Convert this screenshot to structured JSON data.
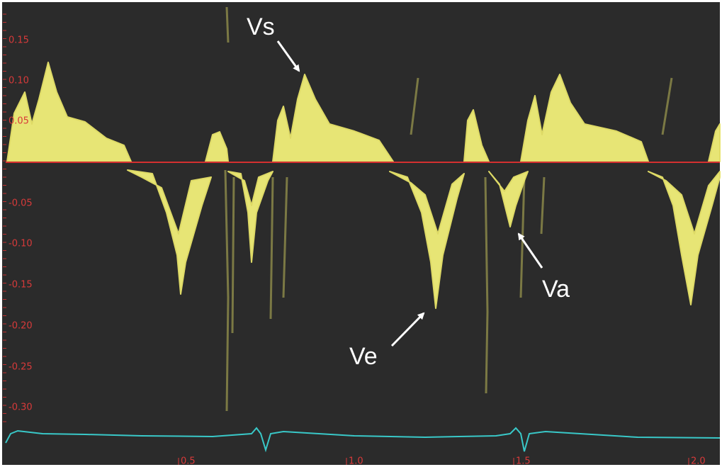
{
  "y_axis": {
    "labels": [
      "0.15",
      "0.10",
      "0.05",
      "-0.05",
      "-0.10",
      "-0.15",
      "-0.20",
      "-0.25",
      "-0.30"
    ]
  },
  "x_axis": {
    "labels": [
      "0.5",
      "1.0",
      "1.5",
      "2.0"
    ]
  },
  "annotations": {
    "vs": "Vs",
    "ve": "Ve",
    "va": "Va"
  }
}
